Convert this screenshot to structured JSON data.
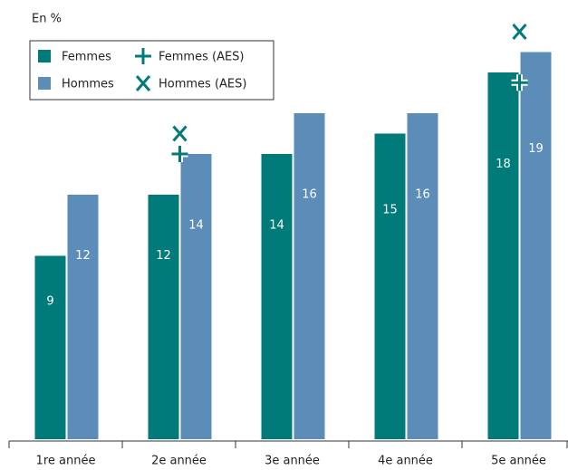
{
  "chart_data": {
    "type": "bar",
    "ylabel": "En %",
    "categories": [
      "1re année",
      "2e année",
      "3e année",
      "4e année",
      "5e année"
    ],
    "series": [
      {
        "name": "Femmes",
        "color": "#007b7a",
        "values": [
          9,
          12,
          14,
          15,
          18
        ]
      },
      {
        "name": "Hommes",
        "color": "#5b8db8",
        "values": [
          12,
          14,
          16,
          16,
          19
        ]
      },
      {
        "name": "Femmes (AES)",
        "color": "#007b7a",
        "marker": "plus",
        "values": [
          null,
          14,
          null,
          null,
          17.5
        ]
      },
      {
        "name": "Hommes (AES)",
        "color": "#007b7a",
        "marker": "x",
        "values": [
          null,
          15,
          null,
          null,
          20
        ]
      }
    ],
    "ylim": [
      0,
      20
    ],
    "legend": "upper left"
  }
}
